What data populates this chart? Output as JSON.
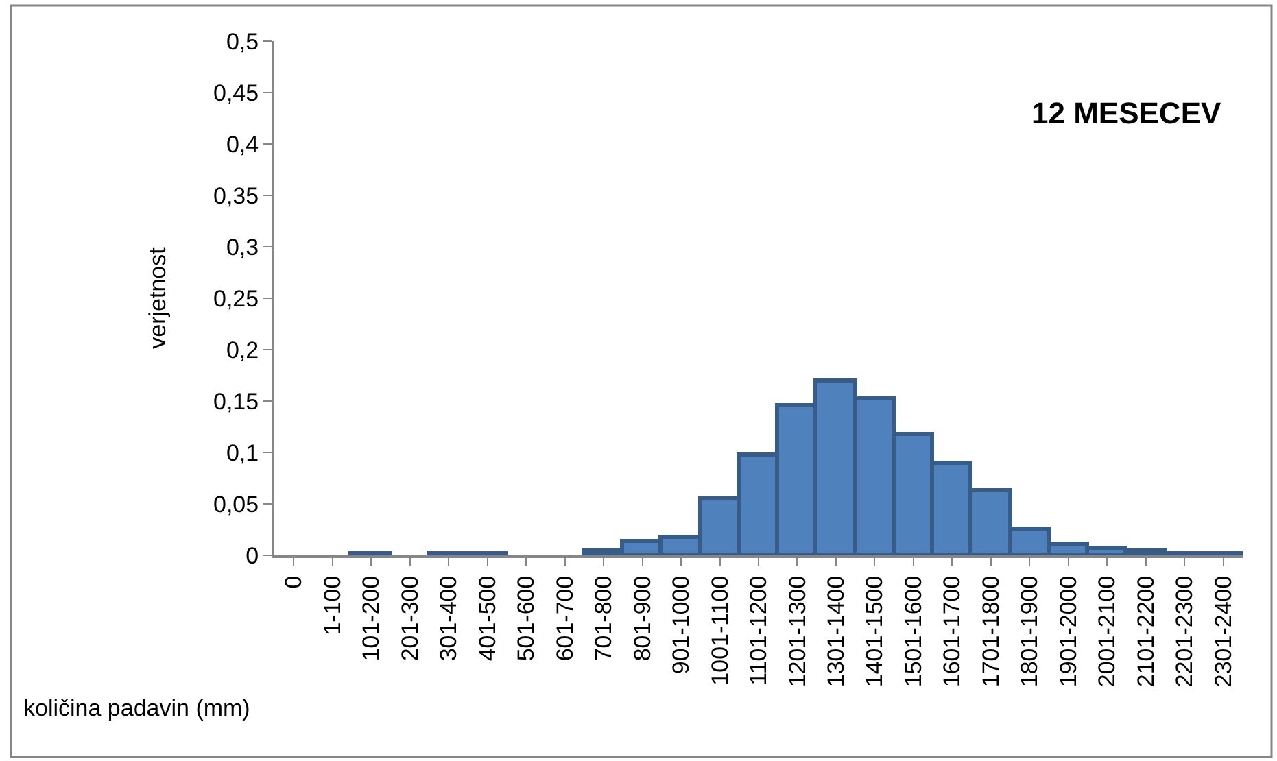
{
  "chart_data": {
    "type": "bar",
    "title": "12 MESECEV",
    "xlabel": "količina padavin (mm)",
    "ylabel": "verjetnost",
    "categories": [
      "0",
      "1-100",
      "101-200",
      "201-300",
      "301-400",
      "401-500",
      "501-600",
      "601-700",
      "701-800",
      "801-900",
      "901-1000",
      "1001-1100",
      "1101-1200",
      "1201-1300",
      "1301-1400",
      "1401-1500",
      "1501-1600",
      "1601-1700",
      "1701-1800",
      "1801-1900",
      "1901-2000",
      "2001-2100",
      "2101-2200",
      "2201-2300",
      "2301-2400"
    ],
    "values": [
      0,
      0,
      0.001,
      0,
      0.001,
      0.001,
      0,
      0,
      0.004,
      0.014,
      0.017,
      0.055,
      0.098,
      0.146,
      0.17,
      0.152,
      0.117,
      0.09,
      0.063,
      0.025,
      0.011,
      0.007,
      0.004,
      0.002,
      0.001
    ],
    "color": "#4f81bd",
    "ylim": [
      0,
      0.5
    ],
    "yticks": [
      0,
      {
        "value": 0.05,
        "label": "0,05"
      },
      {
        "value": 0.1,
        "label": "0,1"
      },
      {
        "value": 0.15,
        "label": "0,15"
      },
      {
        "value": 0.2,
        "label": "0,2"
      },
      {
        "value": 0.25,
        "label": "0,25"
      },
      {
        "value": 0.3,
        "label": "0,3"
      },
      {
        "value": 0.35,
        "label": "0,35"
      },
      {
        "value": 0.4,
        "label": "0,4"
      },
      {
        "value": 0.45,
        "label": "0,45"
      },
      {
        "value": 0.5,
        "label": "0,5"
      }
    ]
  }
}
